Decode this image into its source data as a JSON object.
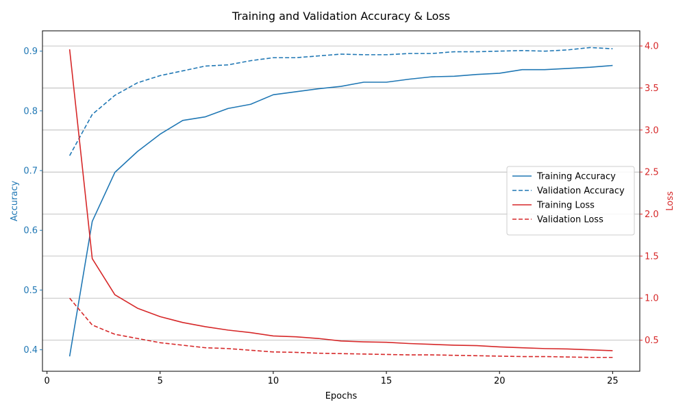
{
  "chart_data": {
    "type": "line",
    "title": "Training and Validation Accuracy & Loss",
    "xlabel": "Epochs",
    "ylabel_left": "Accuracy",
    "ylabel_right": "Loss",
    "x": [
      1,
      2,
      3,
      4,
      5,
      6,
      7,
      8,
      9,
      10,
      11,
      12,
      13,
      14,
      15,
      16,
      17,
      18,
      19,
      20,
      21,
      22,
      23,
      24,
      25
    ],
    "xlim": [
      -0.2,
      26.2
    ],
    "xticks": [
      0,
      5,
      10,
      15,
      20,
      25
    ],
    "ylim_left": [
      0.364,
      0.934
    ],
    "yticks_left": [
      0.4,
      0.5,
      0.6,
      0.7,
      0.8,
      0.9
    ],
    "ylim_right": [
      0.13,
      4.18
    ],
    "yticks_right": [
      0.5,
      1.0,
      1.5,
      2.0,
      2.5,
      3.0,
      3.5,
      4.0
    ],
    "grid": "y-right",
    "legend_position": "center-right",
    "colors": {
      "accuracy": "#1f77b4",
      "loss": "#d62728",
      "grid": "#b0b0b0"
    },
    "series": [
      {
        "name": "Training Accuracy",
        "axis": "left",
        "color": "#1f77b4",
        "dash": "solid",
        "values": [
          0.389,
          0.615,
          0.697,
          0.732,
          0.761,
          0.784,
          0.79,
          0.804,
          0.811,
          0.827,
          0.832,
          0.837,
          0.841,
          0.848,
          0.848,
          0.853,
          0.857,
          0.858,
          0.861,
          0.863,
          0.869,
          0.869,
          0.871,
          0.873,
          0.876
        ]
      },
      {
        "name": "Validation Accuracy",
        "axis": "left",
        "color": "#1f77b4",
        "dash": "dashed",
        "values": [
          0.725,
          0.794,
          0.826,
          0.847,
          0.859,
          0.867,
          0.875,
          0.877,
          0.884,
          0.889,
          0.889,
          0.892,
          0.895,
          0.894,
          0.894,
          0.896,
          0.896,
          0.899,
          0.899,
          0.9,
          0.901,
          0.9,
          0.902,
          0.906,
          0.904
        ]
      },
      {
        "name": "Training Loss",
        "axis": "right",
        "color": "#d62728",
        "dash": "solid",
        "values": [
          3.96,
          1.47,
          1.04,
          0.88,
          0.78,
          0.71,
          0.66,
          0.62,
          0.59,
          0.55,
          0.54,
          0.52,
          0.49,
          0.48,
          0.475,
          0.46,
          0.45,
          0.44,
          0.435,
          0.42,
          0.41,
          0.4,
          0.395,
          0.385,
          0.375
        ]
      },
      {
        "name": "Validation Loss",
        "axis": "right",
        "color": "#d62728",
        "dash": "dashed",
        "values": [
          1.0,
          0.68,
          0.57,
          0.52,
          0.47,
          0.44,
          0.41,
          0.4,
          0.38,
          0.36,
          0.355,
          0.345,
          0.34,
          0.335,
          0.33,
          0.325,
          0.325,
          0.32,
          0.315,
          0.31,
          0.305,
          0.305,
          0.3,
          0.295,
          0.295
        ]
      }
    ]
  }
}
